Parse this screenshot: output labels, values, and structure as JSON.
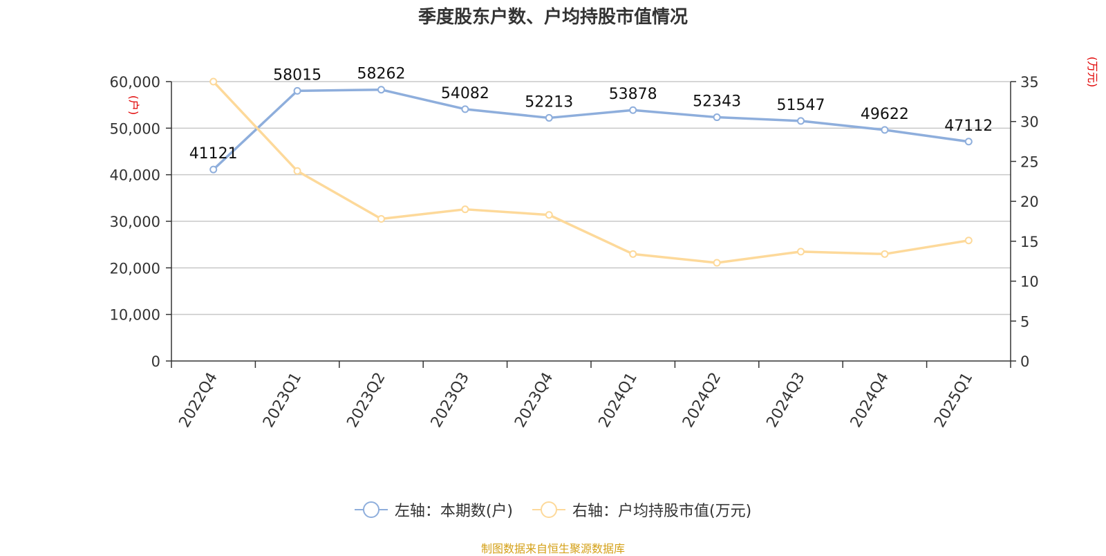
{
  "title": "季度股东户数、户均持股市值情况",
  "source": "制图数据来自恒生聚源数据库",
  "legend": {
    "left": "左轴：本期数(户)",
    "right": "右轴：户均持股市值(万元)"
  },
  "colors": {
    "left_series": "#8eaedc",
    "right_series": "#fdd99a",
    "unit_label": "#e00000",
    "grid": "#c8c8c8",
    "axis": "#333333"
  },
  "chart_data": {
    "type": "line",
    "categories": [
      "2022Q4",
      "2023Q1",
      "2023Q2",
      "2023Q3",
      "2023Q4",
      "2024Q1",
      "2024Q2",
      "2024Q3",
      "2024Q4",
      "2025Q1"
    ],
    "series": [
      {
        "name": "左轴：本期数(户)",
        "axis": "left",
        "values": [
          41121,
          58015,
          58262,
          54082,
          52213,
          53878,
          52343,
          51547,
          49622,
          47112
        ],
        "data_labels": [
          "41121",
          "58015",
          "58262",
          "54082",
          "52213",
          "53878",
          "52343",
          "51547",
          "49622",
          "47112"
        ]
      },
      {
        "name": "右轴：户均持股市值(万元)",
        "axis": "right",
        "values": [
          35.0,
          23.8,
          17.8,
          19.0,
          18.3,
          13.4,
          12.3,
          13.7,
          13.4,
          15.1
        ]
      }
    ],
    "y_left": {
      "unit": "(户)",
      "min": 0,
      "max": 60000,
      "ticks": [
        0,
        10000,
        20000,
        30000,
        40000,
        50000,
        60000
      ],
      "tick_labels": [
        "0",
        "10,000",
        "20,000",
        "30,000",
        "40,000",
        "50,000",
        "60,000"
      ]
    },
    "y_right": {
      "unit": "(万元)",
      "min": 0,
      "max": 35,
      "ticks": [
        0,
        5,
        10,
        15,
        20,
        25,
        30,
        35
      ],
      "tick_labels": [
        "0",
        "5",
        "10",
        "15",
        "20",
        "25",
        "30",
        "35"
      ]
    },
    "grid": true,
    "legend_position": "bottom"
  }
}
